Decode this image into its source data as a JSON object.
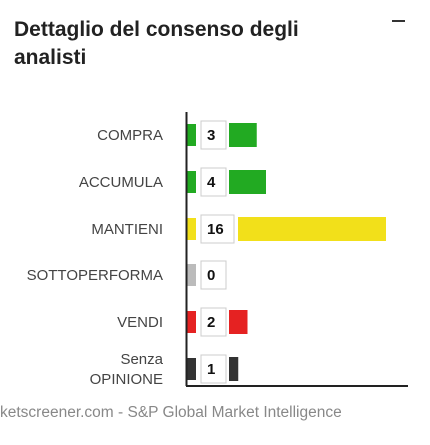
{
  "title": "Dettaglio del consenso degli analisti",
  "source": "ketscreener.com - S&P Global Market Intelligence",
  "chart_data": {
    "type": "bar",
    "orientation": "horizontal",
    "categories": [
      [
        "COMPRA"
      ],
      [
        "ACCUMULA"
      ],
      [
        "MANTIENI"
      ],
      [
        "SOTTOPERFORMA"
      ],
      [
        "VENDI"
      ],
      [
        "Senza",
        "OPINIONE"
      ]
    ],
    "values": [
      3,
      4,
      16,
      0,
      2,
      1
    ],
    "colors": [
      "#22aa22",
      "#22aa22",
      "#f2e01a",
      "#bbbbbb",
      "#e52222",
      "#333333"
    ],
    "grid": false
  }
}
